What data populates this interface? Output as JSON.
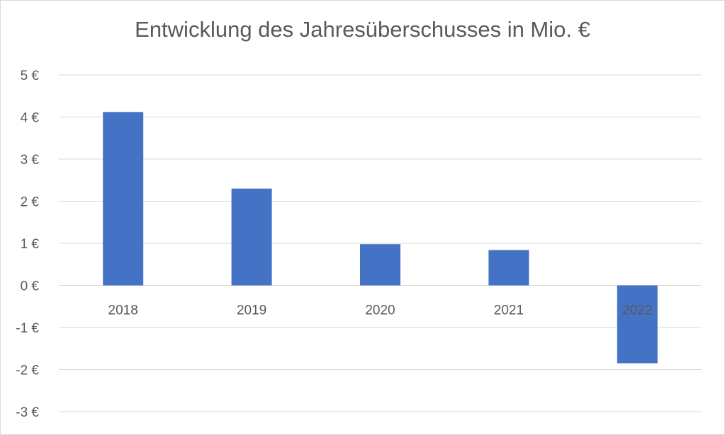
{
  "chart_data": {
    "type": "bar",
    "title": "Entwicklung des Jahresüberschusses in Mio. €",
    "categories": [
      "2018",
      "2019",
      "2020",
      "2021",
      "2022"
    ],
    "values": [
      4.12,
      2.3,
      0.98,
      0.84,
      -1.85
    ],
    "y_ticks": [
      "5 €",
      "4 €",
      "3 €",
      "2 €",
      "1 €",
      "0 €",
      "-1 €",
      "-2 €",
      "-3 €"
    ],
    "ylim": [
      -3,
      5
    ],
    "grid": true,
    "legend": "none",
    "bar_color": "#4472C4",
    "grid_color": "#d9d9d9",
    "text_color": "#595959"
  }
}
